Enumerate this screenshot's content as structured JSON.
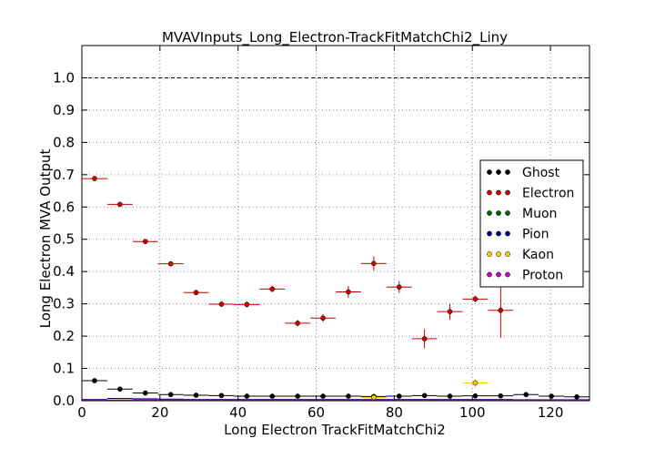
{
  "chart_data": {
    "type": "scatter",
    "title": "MVAVInputs_Long_Electron-TrackFitMatchChi2_Liny",
    "xlabel": "Long Electron TrackFitMatchChi2",
    "ylabel": "Long Electron MVA Output",
    "xlim": [
      0,
      130
    ],
    "ylim": [
      0,
      1.1
    ],
    "xticks": [
      0,
      20,
      40,
      60,
      80,
      100,
      120
    ],
    "yticks": [
      0.0,
      0.1,
      0.2,
      0.3,
      0.4,
      0.5,
      0.6,
      0.7,
      0.8,
      0.9,
      1.0
    ],
    "grid": true,
    "reference_line": 1.0,
    "legend_position": "right",
    "bin_width": 6.5,
    "series": [
      {
        "name": "Ghost",
        "color": "#000000",
        "style": "step",
        "x": [
          3.25,
          9.75,
          16.25,
          22.75,
          29.25,
          35.75,
          42.25,
          48.75,
          55.25,
          61.75,
          68.25,
          74.75,
          81.25,
          87.75,
          94.25,
          100.75,
          107.25,
          113.75,
          120.25,
          126.75
        ],
        "y": [
          0.062,
          0.036,
          0.024,
          0.019,
          0.017,
          0.016,
          0.014,
          0.014,
          0.014,
          0.014,
          0.014,
          0.013,
          0.014,
          0.016,
          0.014,
          0.015,
          0.015,
          0.019,
          0.014,
          0.012
        ],
        "yerr": [
          0.002,
          0.002,
          0.002,
          0.002,
          0.002,
          0.002,
          0.002,
          0.002,
          0.002,
          0.002,
          0.002,
          0.002,
          0.002,
          0.002,
          0.002,
          0.002,
          0.002,
          0.003,
          0.002,
          0.002
        ]
      },
      {
        "name": "Electron",
        "color": "#cc0000",
        "style": "points",
        "x": [
          3.25,
          9.75,
          16.25,
          22.75,
          29.25,
          35.75,
          42.25,
          48.75,
          55.25,
          61.75,
          68.25,
          74.75,
          81.25,
          87.75,
          94.25,
          100.75,
          107.25
        ],
        "y": [
          0.688,
          0.608,
          0.493,
          0.424,
          0.335,
          0.299,
          0.298,
          0.346,
          0.24,
          0.256,
          0.337,
          0.425,
          0.352,
          0.192,
          0.276,
          0.315,
          0.28
        ],
        "yerr": [
          0.006,
          0.006,
          0.007,
          0.008,
          0.008,
          0.008,
          0.009,
          0.01,
          0.01,
          0.012,
          0.018,
          0.022,
          0.018,
          0.03,
          0.025,
          0.01,
          0.085
        ]
      },
      {
        "name": "Muon",
        "color": "#006400",
        "style": "step",
        "x": [
          3.25,
          9.75,
          16.25,
          22.75,
          29.25,
          35.75,
          42.25,
          48.75,
          55.25,
          61.75,
          68.25,
          74.75,
          81.25,
          87.75,
          94.25,
          100.75,
          107.25,
          113.75,
          120.25,
          126.75
        ],
        "y": [
          0.002,
          0.002,
          0.002,
          0.002,
          0.002,
          0.002,
          0.002,
          0.002,
          0.002,
          0.002,
          0.002,
          0.002,
          0.002,
          0.002,
          0.002,
          0.002,
          0.002,
          0.002,
          0.002,
          0.002
        ],
        "yerr": []
      },
      {
        "name": "Pion",
        "color": "#00008b",
        "style": "step",
        "x": [
          3.25,
          9.75,
          16.25,
          22.75,
          29.25,
          35.75,
          42.25,
          48.75,
          55.25,
          61.75,
          68.25,
          74.75,
          81.25,
          87.75,
          94.25,
          100.75,
          107.25,
          113.75,
          120.25,
          126.75
        ],
        "y": [
          0.004,
          0.007,
          0.006,
          0.005,
          0.004,
          0.004,
          0.004,
          0.004,
          0.004,
          0.004,
          0.004,
          0.004,
          0.004,
          0.004,
          0.004,
          0.004,
          0.004,
          0.003,
          0.003,
          0.003
        ],
        "yerr": []
      },
      {
        "name": "Kaon",
        "color": "#ffcc00",
        "style": "points",
        "x": [
          74.75,
          100.75
        ],
        "y": [
          0.01,
          0.055
        ],
        "yerr": [
          0.004,
          0.015
        ]
      },
      {
        "name": "Proton",
        "color": "#cc00cc",
        "style": "step",
        "x": [
          3.25,
          9.75,
          16.25,
          22.75,
          29.25,
          35.75,
          42.25,
          48.75,
          55.25,
          61.75,
          68.25,
          74.75,
          81.25,
          87.75,
          94.25,
          100.75,
          107.25,
          113.75,
          120.25,
          126.75
        ],
        "y": [
          0.002,
          0.002,
          0.003,
          0.002,
          0.002,
          0.002,
          0.002,
          0.002,
          0.002,
          0.002,
          0.002,
          0.002,
          0.002,
          0.002,
          0.002,
          0.002,
          0.002,
          0.002,
          0.002,
          0.002
        ],
        "yerr": []
      }
    ]
  }
}
